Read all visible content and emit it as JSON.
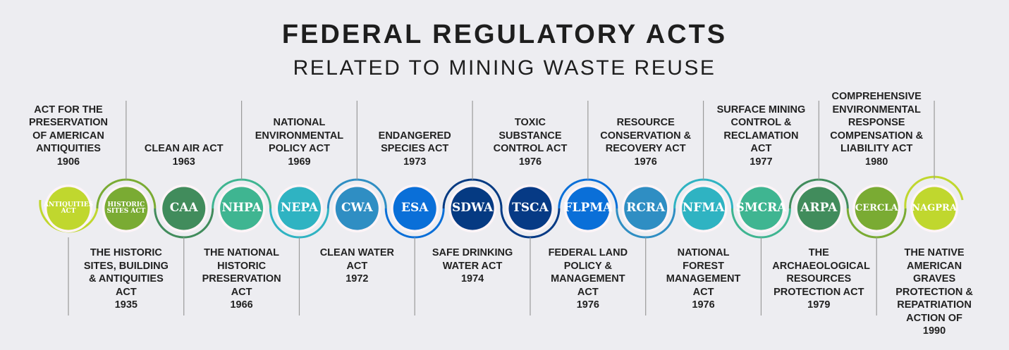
{
  "title": "FEDERAL REGULATORY ACTS",
  "subtitle": "RELATED TO MINING WASTE REUSE",
  "acts": [
    {
      "abbr": "ANTIQUITIES ACT",
      "name": "ACT FOR THE PRESERVATION OF AMERICAN ANTIQUITIES",
      "year": "1906",
      "color": "#c0d72e"
    },
    {
      "abbr": "HISTORIC SITES ACT",
      "name": "THE HISTORIC SITES, BUILDING & ANTIQUITIES ACT",
      "year": "1935",
      "color": "#7aab33"
    },
    {
      "abbr": "CAA",
      "name": "CLEAN AIR ACT",
      "year": "1963",
      "color": "#418c5c"
    },
    {
      "abbr": "NHPA",
      "name": "THE NATIONAL HISTORIC PRESERVATION ACT",
      "year": "1966",
      "color": "#3fb591"
    },
    {
      "abbr": "NEPA",
      "name": "NATIONAL ENVIRONMENTAL POLICY ACT",
      "year": "1969",
      "color": "#2fb3c2"
    },
    {
      "abbr": "CWA",
      "name": "CLEAN WATER ACT",
      "year": "1972",
      "color": "#2f8ec3"
    },
    {
      "abbr": "ESA",
      "name": "ENDANGERED SPECIES ACT",
      "year": "1973",
      "color": "#0a6fd8"
    },
    {
      "abbr": "SDWA",
      "name": "SAFE DRINKING WATER ACT",
      "year": "1974",
      "color": "#053a82"
    },
    {
      "abbr": "TSCA",
      "name": "TOXIC SUBSTANCE CONTROL ACT",
      "year": "1976",
      "color": "#063a85"
    },
    {
      "abbr": "FLPMA",
      "name": "FEDERAL LAND POLICY & MANAGEMENT ACT",
      "year": "1976",
      "color": "#0a6fd8"
    },
    {
      "abbr": "RCRA",
      "name": "RESOURCE CONSERVATION & RECOVERY ACT",
      "year": "1976",
      "color": "#2f8ec3"
    },
    {
      "abbr": "NFMA",
      "name": "NATIONAL FOREST MANAGEMENT ACT",
      "year": "1976",
      "color": "#2fb3c2"
    },
    {
      "abbr": "SMCRA",
      "name": "SURFACE MINING CONTROL & RECLAMATION ACT",
      "year": "1977",
      "color": "#3fb591"
    },
    {
      "abbr": "ARPA",
      "name": "THE ARCHAEOLOGICAL RESOURCES PROTECTION ACT",
      "year": "1979",
      "color": "#418c5c"
    },
    {
      "abbr": "CERCLA",
      "name": "COMPREHENSIVE ENVIRONMENTAL RESPONSE COMPENSATION & LIABILITY ACT",
      "year": "1980",
      "color": "#7aab33"
    },
    {
      "abbr": "NAGPRA",
      "name": "THE NATIVE AMERICAN GRAVES PROTECTION & REPATRIATION ACTION OF",
      "year": "1990",
      "color": "#c0d72e"
    }
  ]
}
